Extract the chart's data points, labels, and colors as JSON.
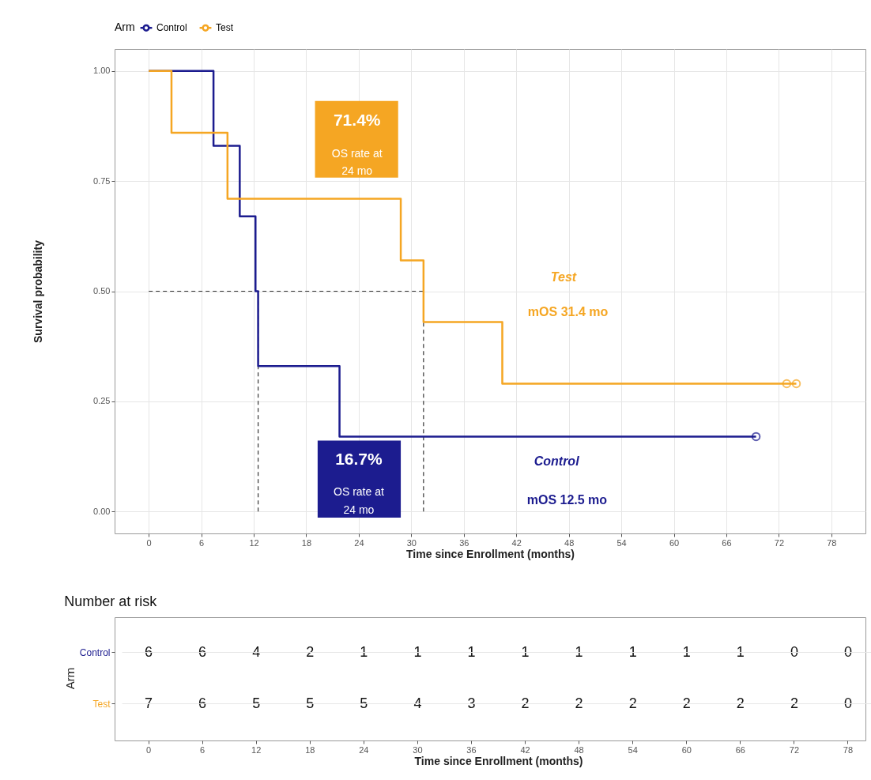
{
  "chart_data": [
    {
      "type": "step",
      "xlabel": "Time since Enrollment (months)",
      "ylabel": "Survival probability",
      "legend_title": "Arm",
      "legend": "top",
      "grid": true,
      "xlim": [
        -3.9,
        81.9
      ],
      "xticks": [
        0,
        6,
        12,
        18,
        24,
        30,
        36,
        42,
        48,
        54,
        60,
        66,
        72,
        78
      ],
      "ylim": [
        -0.05,
        1.05
      ],
      "yticks": [
        {
          "value": 0,
          "label": "0.00"
        },
        {
          "value": 0.25,
          "label": "0.25"
        },
        {
          "value": 0.5,
          "label": "0.50"
        },
        {
          "value": 0.75,
          "label": "0.75"
        },
        {
          "value": 1,
          "label": "1.00"
        }
      ],
      "series": [
        {
          "name": "Control",
          "color": "#1c1c8f",
          "x": [
            0,
            7.4,
            10.4,
            12.2,
            12.5,
            21.8,
            69.4
          ],
          "values": [
            1,
            0.83,
            0.67,
            0.5,
            0.33,
            0.17,
            0.17
          ]
        },
        {
          "name": "Test",
          "color": "#f5a623",
          "x": [
            0,
            2.6,
            9.0,
            28.8,
            31.4,
            40.4,
            74.0
          ],
          "values": [
            1,
            0.86,
            0.71,
            0.57,
            0.43,
            0.29,
            0.29
          ]
        },
        {
          "type": "scatter",
          "marker": "circle",
          "color": "#1c1c8f",
          "x": [
            69.4
          ],
          "values": [
            0.17
          ]
        },
        {
          "type": "scatter",
          "marker": "circle",
          "color": "#f5a623",
          "x": [
            72.9,
            74.0
          ],
          "values": [
            0.29,
            0.29
          ]
        }
      ],
      "ref_lines": [
        {
          "axis": "y",
          "value": 0.5,
          "line_style": "dashed"
        },
        {
          "axis": "x",
          "value": 12.5,
          "line_style": "dashed"
        },
        {
          "axis": "x",
          "value": 31.4,
          "line_style": "dashed"
        }
      ],
      "annotations": [
        "71.4%",
        "OS rate at\n24 mo",
        "Test",
        "mOS 31.4 mo",
        "16.7%",
        "OS rate at\n24 mo",
        "Control",
        "mOS 12.5 mo"
      ]
    },
    {
      "type": "heatmap",
      "title": "Number at risk",
      "xlabel": "Time since Enrollment (months)",
      "ylabel": "Arm",
      "grid": "y",
      "data_labels": true,
      "categories": [
        "0",
        "6",
        "12",
        "18",
        "24",
        "30",
        "36",
        "42",
        "48",
        "54",
        "60",
        "66",
        "72",
        "78"
      ],
      "y_categories": [
        "Control",
        "Test"
      ],
      "cells": [
        [
          6,
          6,
          4,
          2,
          1,
          1,
          1,
          1,
          1,
          1,
          1,
          1,
          0,
          0
        ],
        [
          7,
          6,
          5,
          5,
          5,
          4,
          3,
          2,
          2,
          2,
          2,
          2,
          2,
          0
        ]
      ]
    }
  ]
}
